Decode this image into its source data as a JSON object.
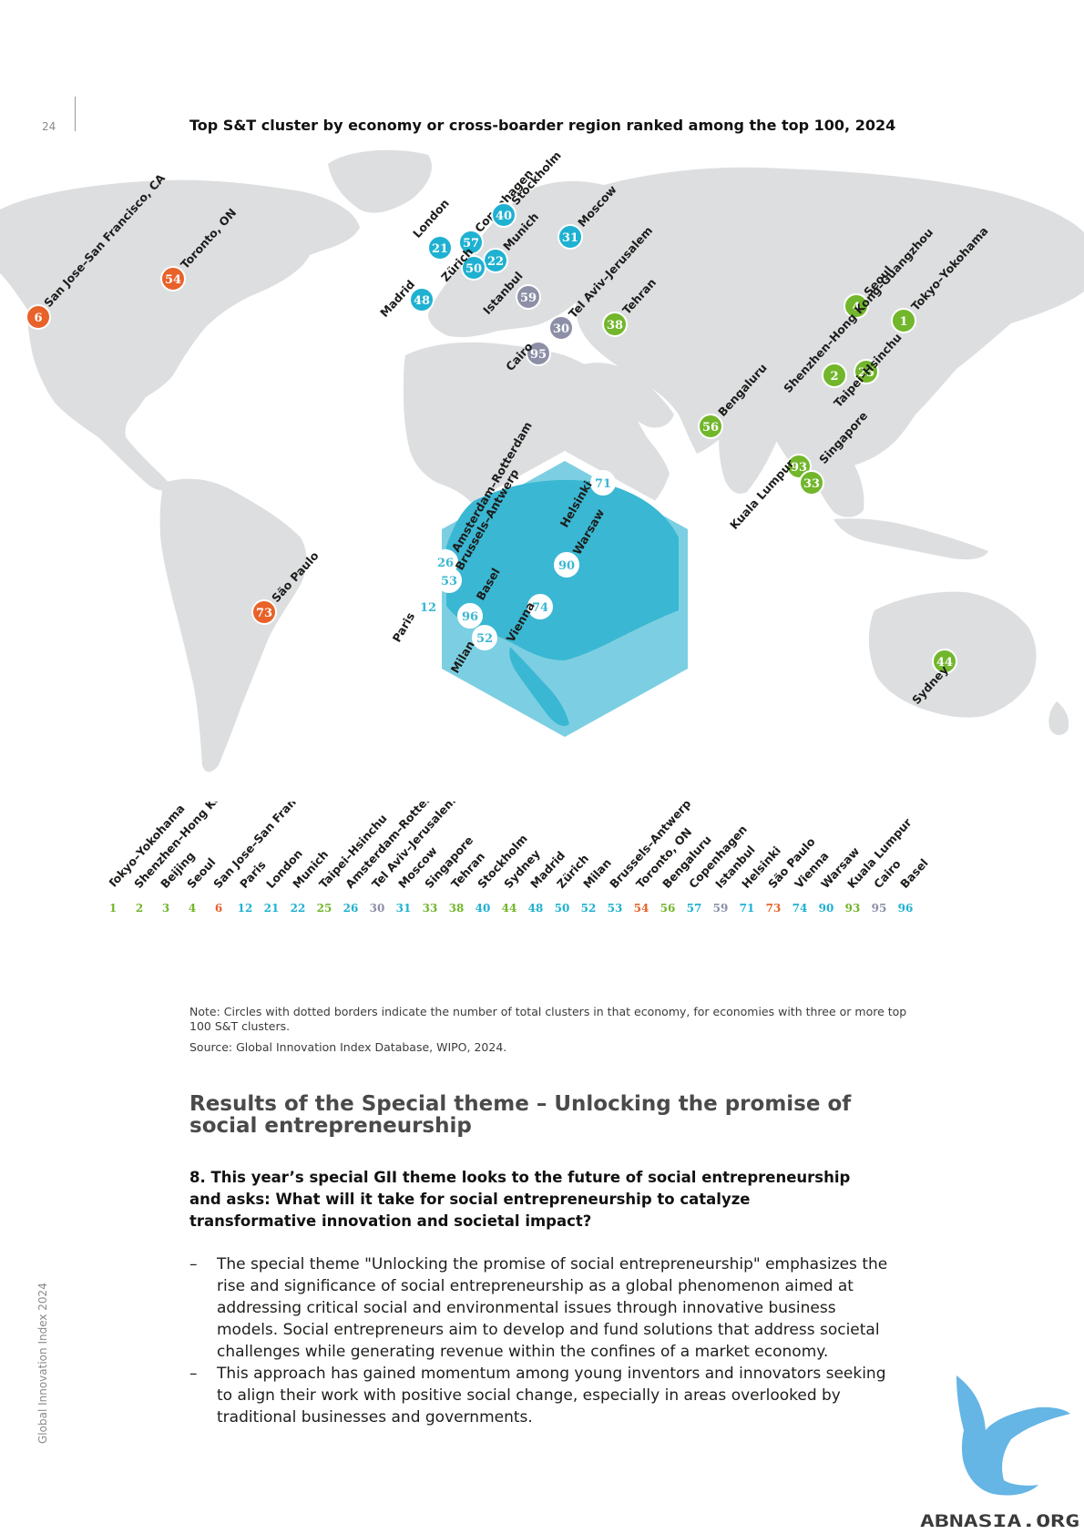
{
  "page": {
    "number": "24",
    "side_label": "Global Innovation Index 2024"
  },
  "figure": {
    "title": "Top S&T cluster by economy or cross-boarder region ranked among the top 100, 2024",
    "note": "Note: Circles with dotted borders indicate the number of total clusters in that economy, for economies with three or more top 100 S&T clusters.",
    "source": "Source: Global Innovation Index Database, WIPO, 2024.",
    "colors": {
      "orange": "#e8622a",
      "blue": "#1fb1d1",
      "gray": "#8c8fa6",
      "green": "#72b62c",
      "land": "#dcdee0",
      "hex": "#3ab7d3"
    },
    "map_markers": [
      {
        "rank": "6",
        "name": "San Jose–San Francisco, CA",
        "color": "orange"
      },
      {
        "rank": "54",
        "name": "Toronto, ON",
        "color": "orange"
      },
      {
        "rank": "73",
        "name": "São Paulo",
        "color": "orange"
      },
      {
        "rank": "21",
        "name": "London",
        "color": "blue"
      },
      {
        "rank": "57",
        "name": "Copenhagen",
        "color": "blue"
      },
      {
        "rank": "40",
        "name": "Stockholm",
        "color": "blue"
      },
      {
        "rank": "22",
        "name": "Munich",
        "color": "blue"
      },
      {
        "rank": "50",
        "name": "Zürich",
        "color": "blue"
      },
      {
        "rank": "31",
        "name": "Moscow",
        "color": "blue"
      },
      {
        "rank": "48",
        "name": "Madrid",
        "color": "blue"
      },
      {
        "rank": "59",
        "name": "Istanbul",
        "color": "gray"
      },
      {
        "rank": "30",
        "name": "Tel Aviv–Jerusalem",
        "color": "gray"
      },
      {
        "rank": "95",
        "name": "Cairo",
        "color": "gray"
      },
      {
        "rank": "38",
        "name": "Tehran",
        "color": "green"
      },
      {
        "rank": "4",
        "name": "Seoul",
        "color": "green"
      },
      {
        "rank": "1",
        "name": "Tokyo–Yokohama",
        "color": "green"
      },
      {
        "rank": "2",
        "name": "Shenzhen–Hong Kong–Guangzhou",
        "color": "green"
      },
      {
        "rank": "25",
        "name": "Taipei–Hsinchu",
        "color": "green"
      },
      {
        "rank": "56",
        "name": "Bengaluru",
        "color": "green"
      },
      {
        "rank": "93",
        "name": "Kuala Lumpur",
        "color": "green"
      },
      {
        "rank": "33",
        "name": "Singapore",
        "color": "green"
      },
      {
        "rank": "44",
        "name": "Sydney",
        "color": "green"
      }
    ],
    "inset_markers": [
      {
        "rank": "71",
        "name": "Helsinki"
      },
      {
        "rank": "26",
        "name": "Amsterdam–Rotterdam"
      },
      {
        "rank": "53",
        "name": "Brussels–Antwerp"
      },
      {
        "rank": "90",
        "name": "Warsaw"
      },
      {
        "rank": "12",
        "name": "Paris"
      },
      {
        "rank": "96",
        "name": "Basel"
      },
      {
        "rank": "74",
        "name": "Vienna"
      },
      {
        "rank": "52",
        "name": "Milan"
      }
    ],
    "legend": [
      {
        "name": "Tokyo–Yokohama",
        "rank": "1",
        "color": "green"
      },
      {
        "name": "Shenzhen–Hong Kong–Guangzhou",
        "rank": "2",
        "color": "green"
      },
      {
        "name": "Beijing",
        "rank": "3",
        "color": "green"
      },
      {
        "name": "Seoul",
        "rank": "4",
        "color": "green"
      },
      {
        "name": "San Jose–San Francisco, CA",
        "rank": "6",
        "color": "orange"
      },
      {
        "name": "Paris",
        "rank": "12",
        "color": "blue"
      },
      {
        "name": "London",
        "rank": "21",
        "color": "blue"
      },
      {
        "name": "Munich",
        "rank": "22",
        "color": "blue"
      },
      {
        "name": "Taipei–Hsinchu",
        "rank": "25",
        "color": "green"
      },
      {
        "name": "Amsterdam–Rotterdam",
        "rank": "26",
        "color": "blue"
      },
      {
        "name": "Tel Aviv–Jerusalem",
        "rank": "30",
        "color": "gray"
      },
      {
        "name": "Moscow",
        "rank": "31",
        "color": "blue"
      },
      {
        "name": "Singapore",
        "rank": "33",
        "color": "green"
      },
      {
        "name": "Tehran",
        "rank": "38",
        "color": "green"
      },
      {
        "name": "Stockholm",
        "rank": "40",
        "color": "blue"
      },
      {
        "name": "Sydney",
        "rank": "44",
        "color": "green"
      },
      {
        "name": "Madrid",
        "rank": "48",
        "color": "blue"
      },
      {
        "name": "Zürich",
        "rank": "50",
        "color": "blue"
      },
      {
        "name": "Milan",
        "rank": "52",
        "color": "blue"
      },
      {
        "name": "Brussels–Antwerp",
        "rank": "53",
        "color": "blue"
      },
      {
        "name": "Toronto, ON",
        "rank": "54",
        "color": "orange"
      },
      {
        "name": "Bengaluru",
        "rank": "56",
        "color": "green"
      },
      {
        "name": "Copenhagen",
        "rank": "57",
        "color": "blue"
      },
      {
        "name": "Istanbul",
        "rank": "59",
        "color": "gray"
      },
      {
        "name": "Helsinki",
        "rank": "71",
        "color": "blue"
      },
      {
        "name": "São Paulo",
        "rank": "73",
        "color": "orange"
      },
      {
        "name": "Vienna",
        "rank": "74",
        "color": "blue"
      },
      {
        "name": "Warsaw",
        "rank": "90",
        "color": "blue"
      },
      {
        "name": "Kuala Lumpur",
        "rank": "93",
        "color": "green"
      },
      {
        "name": "Cairo",
        "rank": "95",
        "color": "gray"
      },
      {
        "name": "Basel",
        "rank": "96",
        "color": "blue"
      }
    ]
  },
  "section": {
    "title": "Results of the Special theme – Unlocking the promise of social entrepreneurship",
    "question": "8. This year’s special GII theme looks to the future of social entrepreneurship and asks: What will it take for social entrepreneurship to catalyze transformative innovation and societal impact?",
    "bullets": [
      "The special theme \"Unlocking the promise of social entrepreneurship\" emphasizes the rise and significance of social entrepreneurship as a global phenomenon aimed at addressing critical social and environmental issues through innovative business models. Social entrepreneurs aim to develop and fund solutions that address societal challenges while generating revenue within the confines of a market economy.",
      "This approach has gained momentum among young inventors and innovators seeking to align their work with positive social change, especially in areas overlooked by traditional businesses and governments."
    ],
    "bullet_marker": "–"
  },
  "watermark": {
    "text": "ABNASIA.ORG"
  }
}
